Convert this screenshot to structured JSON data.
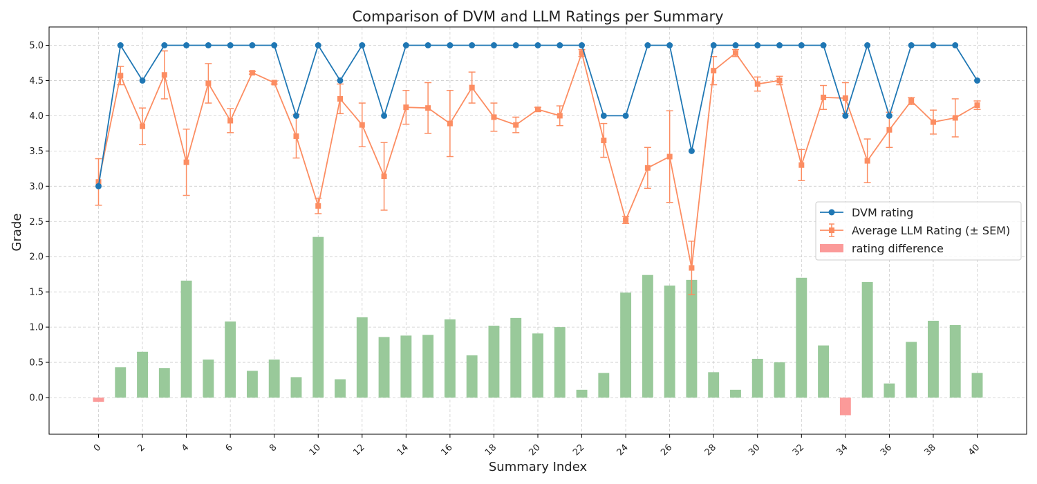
{
  "chart_data": {
    "type": "line",
    "title": "Comparison of DVM and LLM Ratings per Summary",
    "xlabel": "Summary Index",
    "ylabel": "Grade",
    "xlim": [
      -2.25,
      42.25
    ],
    "ylim": [
      -0.52,
      5.26
    ],
    "xticks": [
      0,
      2,
      4,
      6,
      8,
      10,
      12,
      14,
      16,
      18,
      20,
      22,
      24,
      26,
      28,
      30,
      32,
      34,
      36,
      38,
      40
    ],
    "yticks": [
      0.0,
      0.5,
      1.0,
      1.5,
      2.0,
      2.5,
      3.0,
      3.5,
      4.0,
      4.5,
      5.0
    ],
    "grid": true,
    "legend_position": "center-right",
    "x": [
      0,
      1,
      2,
      3,
      4,
      5,
      6,
      7,
      8,
      9,
      10,
      11,
      12,
      13,
      14,
      15,
      16,
      17,
      18,
      19,
      20,
      21,
      22,
      23,
      24,
      25,
      26,
      27,
      28,
      29,
      30,
      31,
      32,
      33,
      34,
      35,
      36,
      37,
      38,
      39,
      40
    ],
    "series": [
      {
        "name": "DVM rating",
        "kind": "line",
        "color": "#1f77b4",
        "marker": "circle",
        "values": [
          3.0,
          5.0,
          4.5,
          5.0,
          5.0,
          5.0,
          5.0,
          5.0,
          5.0,
          4.0,
          5.0,
          4.5,
          5.0,
          4.0,
          5.0,
          5.0,
          5.0,
          5.0,
          5.0,
          5.0,
          5.0,
          5.0,
          5.0,
          4.0,
          4.0,
          5.0,
          5.0,
          3.5,
          5.0,
          5.0,
          5.0,
          5.0,
          5.0,
          5.0,
          4.0,
          5.0,
          4.0,
          5.0,
          5.0,
          5.0,
          4.5
        ]
      },
      {
        "name": "Average LLM Rating (± SEM)",
        "kind": "line-errorbar",
        "color": "#fc8d62",
        "marker": "square",
        "values": [
          3.06,
          4.57,
          3.85,
          4.58,
          3.34,
          4.46,
          3.93,
          4.61,
          4.47,
          3.71,
          2.72,
          4.24,
          3.87,
          3.14,
          4.12,
          4.11,
          3.89,
          4.4,
          3.98,
          3.87,
          4.09,
          4.0,
          4.89,
          3.65,
          2.52,
          3.26,
          3.42,
          1.84,
          4.64,
          4.89,
          4.45,
          4.5,
          3.3,
          4.26,
          4.25,
          3.36,
          3.8,
          4.21,
          3.91,
          3.97,
          4.15
        ],
        "errors": [
          0.33,
          0.13,
          0.26,
          0.34,
          0.47,
          0.28,
          0.17,
          0.02,
          0.02,
          0.31,
          0.11,
          0.21,
          0.31,
          0.48,
          0.24,
          0.36,
          0.47,
          0.22,
          0.2,
          0.11,
          0.03,
          0.14,
          0.05,
          0.24,
          0.05,
          0.29,
          0.65,
          0.38,
          0.2,
          0.05,
          0.1,
          0.06,
          0.22,
          0.17,
          0.22,
          0.31,
          0.25,
          0.05,
          0.17,
          0.27,
          0.06
        ]
      },
      {
        "name": "rating difference",
        "kind": "bar",
        "color_positive": "#99c99a",
        "color_negative": "#fb9a99",
        "values": [
          -0.06,
          0.43,
          0.65,
          0.42,
          1.66,
          0.54,
          1.08,
          0.38,
          0.54,
          0.29,
          2.28,
          0.26,
          1.14,
          0.86,
          0.88,
          0.89,
          1.11,
          0.6,
          1.02,
          1.13,
          0.91,
          1.0,
          0.11,
          0.35,
          1.49,
          1.74,
          1.59,
          1.67,
          0.36,
          0.11,
          0.55,
          0.5,
          1.7,
          0.74,
          -0.25,
          1.64,
          0.2,
          0.79,
          1.09,
          1.03,
          0.35
        ]
      }
    ]
  }
}
